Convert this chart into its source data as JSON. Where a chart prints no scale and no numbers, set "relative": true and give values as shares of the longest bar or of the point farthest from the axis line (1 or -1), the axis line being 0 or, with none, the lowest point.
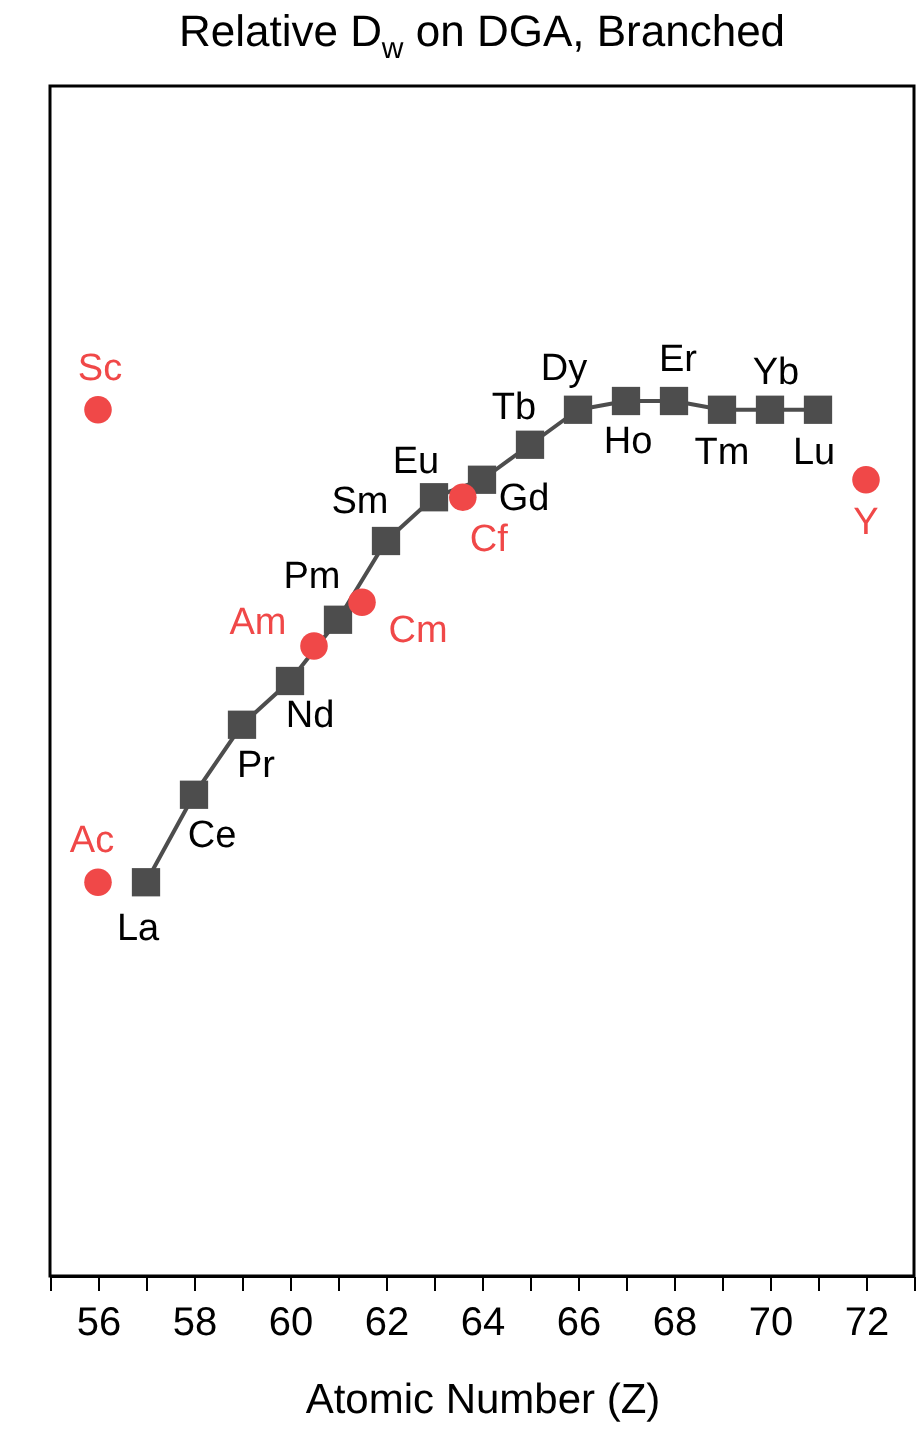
{
  "chart_data": {
    "type": "line",
    "title": "Relative D$_{w}$ on DGA, Branched",
    "xlabel": "Atomic Number (Z)",
    "xlim": [
      55,
      73
    ],
    "xticks": [
      {
        "value": 55,
        "label": null
      },
      56,
      {
        "value": 57,
        "label": null
      },
      58,
      {
        "value": 59,
        "label": null
      },
      60,
      {
        "value": 61,
        "label": null
      },
      62,
      {
        "value": 63,
        "label": null
      },
      64,
      {
        "value": 65,
        "label": null
      },
      66,
      {
        "value": 67,
        "label": null
      },
      68,
      {
        "value": 69,
        "label": null
      },
      70,
      {
        "value": 71,
        "label": null
      },
      72,
      {
        "value": 73,
        "label": null
      }
    ],
    "relative": true,
    "grid": false,
    "legend": false,
    "tick_labels": "x",
    "series": [
      {
        "type": "line",
        "marker": "square",
        "line_style": "solid",
        "color": "#4d4d4d",
        "x": [
          57,
          58,
          59,
          60,
          61,
          62,
          63,
          64,
          65,
          66,
          67,
          68,
          69,
          70,
          71
        ],
        "values": [
          0.45,
          0.55,
          0.63,
          0.68,
          0.75,
          0.84,
          0.89,
          0.91,
          0.95,
          0.99,
          1,
          1,
          0.99,
          0.99,
          0.99
        ]
      },
      {
        "type": "scatter",
        "marker": "circle",
        "color": "#f04848",
        "x": [
          56,
          56,
          60.5,
          61.5,
          63.6,
          72
        ],
        "values": [
          0.99,
          0.45,
          0.72,
          0.77,
          0.89,
          0.91
        ]
      }
    ],
    "annotations": [
      {
        "text": "La",
        "x": 57,
        "y": 0.45
      },
      {
        "text": "Ce",
        "x": 58,
        "y": 0.55
      },
      {
        "text": "Pr",
        "x": 59,
        "y": 0.63
      },
      {
        "text": "Nd",
        "x": 60,
        "y": 0.68
      },
      {
        "text": "Pm",
        "x": 61,
        "y": 0.75
      },
      {
        "text": "Sm",
        "x": 62,
        "y": 0.84
      },
      {
        "text": "Eu",
        "x": 63,
        "y": 0.89
      },
      {
        "text": "Gd",
        "x": 64,
        "y": 0.91
      },
      {
        "text": "Tb",
        "x": 65,
        "y": 0.95
      },
      {
        "text": "Dy",
        "x": 66,
        "y": 0.99
      },
      {
        "text": "Ho",
        "x": 67,
        "y": 1
      },
      {
        "text": "Er",
        "x": 68,
        "y": 1
      },
      {
        "text": "Tm",
        "x": 69,
        "y": 0.99
      },
      {
        "text": "Yb",
        "x": 70,
        "y": 0.99
      },
      {
        "text": "Lu",
        "x": 71,
        "y": 0.99
      },
      {
        "text": "Sc",
        "x": 56,
        "y": 0.99
      },
      {
        "text": "Ac",
        "x": 56,
        "y": 0.45
      },
      {
        "text": "Am",
        "x": 60.5,
        "y": 0.72
      },
      {
        "text": "Cm",
        "x": 61.5,
        "y": 0.77
      },
      {
        "text": "Cf",
        "x": 63.6,
        "y": 0.89
      },
      {
        "text": "Y",
        "x": 72,
        "y": 0.91
      }
    ]
  }
}
